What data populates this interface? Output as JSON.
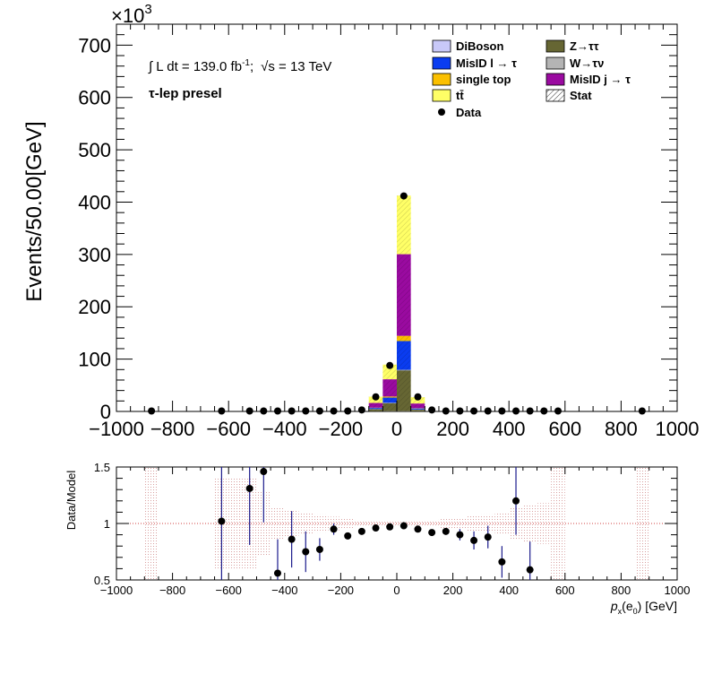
{
  "chart_data": [
    {
      "type": "bar",
      "stacked": true,
      "bin_width": 50,
      "x_range": [
        -1000,
        1000
      ],
      "ylim": [
        0,
        740
      ],
      "ylabel": "Events/50.00[GeV]",
      "y_multiplier": "×10",
      "y_multiplier_exp": "3",
      "x_ticks": [
        -1000,
        -800,
        -600,
        -400,
        -200,
        0,
        200,
        400,
        600,
        800,
        1000
      ],
      "y_ticks": [
        0,
        100,
        200,
        300,
        400,
        500,
        600,
        700
      ],
      "annotation_lumi": "∫ L dt = 139.0 fb",
      "annotation_lumi_sup": "-1",
      "annotation_sep": ";",
      "annotation_sqrt_s": "√s = 13 TeV",
      "annotation_region": "τ-lep presel",
      "legend": [
        {
          "label": "DiBoson",
          "color": "#c8c8f8",
          "kind": "box"
        },
        {
          "label": "Z→ττ",
          "color": "#666633",
          "kind": "box"
        },
        {
          "label": "MisID l → τ",
          "color": "#0a3cf0",
          "kind": "box"
        },
        {
          "label": "W→τν",
          "color": "#b4b4b4",
          "kind": "box"
        },
        {
          "label": "single top",
          "color": "#fbc000",
          "kind": "box"
        },
        {
          "label": "MisID j → τ",
          "color": "#9a0aa0",
          "kind": "box"
        },
        {
          "label": "tt̄",
          "color": "#ffff66",
          "kind": "box"
        },
        {
          "label": "Stat",
          "color": "#000000",
          "kind": "hatch"
        },
        {
          "label": "Data",
          "color": "#000000",
          "kind": "marker"
        }
      ],
      "bins_center": [
        -75,
        -25,
        25,
        75
      ],
      "series": [
        {
          "name": "DiBoson",
          "color": "#c8c8f8",
          "values": [
            0.2,
            0.5,
            0.5,
            0.2
          ]
        },
        {
          "name": "Z→ττ",
          "color": "#666633",
          "values": [
            4,
            15,
            78,
            3
          ]
        },
        {
          "name": "W→τν",
          "color": "#b4b4b4",
          "values": [
            0.5,
            1,
            1,
            0.5
          ]
        },
        {
          "name": "MisID l → τ",
          "color": "#0a3cf0",
          "values": [
            2,
            10,
            55,
            2
          ]
        },
        {
          "name": "single top",
          "color": "#fbc000",
          "values": [
            0.5,
            2,
            10,
            0.5
          ]
        },
        {
          "name": "MisID j → τ",
          "color": "#9a0aa0",
          "values": [
            9,
            33,
            156,
            9
          ]
        },
        {
          "name": "tt̄",
          "color": "#ffff66",
          "values": [
            12,
            28,
            112,
            12
          ]
        }
      ],
      "data_points": {
        "x": [
          -875,
          -625,
          -525,
          -475,
          -425,
          -375,
          -325,
          -275,
          -225,
          -175,
          -125,
          -75,
          -25,
          25,
          75,
          125,
          175,
          225,
          275,
          325,
          375,
          425,
          475,
          525,
          575,
          875
        ],
        "y": [
          0,
          0,
          0,
          0,
          0,
          0,
          0,
          0,
          0,
          0,
          2,
          27,
          87,
          411,
          27,
          2,
          0,
          0,
          0,
          0,
          0,
          0,
          0,
          0,
          0,
          0
        ]
      }
    },
    {
      "type": "scatter",
      "xlabel": "p",
      "xlabel_sub": "x",
      "xlabel_rest": "(e",
      "xlabel_sub2": "0",
      "xlabel_end": ") [GeV]",
      "ylabel": "Data/Model",
      "x_range": [
        -1000,
        1000
      ],
      "ylim": [
        0.5,
        1.5
      ],
      "x_ticks": [
        -1000,
        -800,
        -600,
        -400,
        -200,
        0,
        200,
        400,
        600,
        800,
        1000
      ],
      "y_ticks": [
        0.5,
        1,
        1.5
      ],
      "reference_line": 1,
      "points": [
        {
          "x": -625,
          "y": 1.02,
          "err": 0.55
        },
        {
          "x": -525,
          "y": 1.31,
          "err": 0.5
        },
        {
          "x": -475,
          "y": 1.46,
          "err": 0.45
        },
        {
          "x": -425,
          "y": 0.56,
          "err": 0.3
        },
        {
          "x": -375,
          "y": 0.86,
          "err": 0.25
        },
        {
          "x": -325,
          "y": 0.75,
          "err": 0.18
        },
        {
          "x": -275,
          "y": 0.77,
          "err": 0.1
        },
        {
          "x": -225,
          "y": 0.95,
          "err": 0.05
        },
        {
          "x": -175,
          "y": 0.89,
          "err": 0.03
        },
        {
          "x": -125,
          "y": 0.93,
          "err": 0.02
        },
        {
          "x": -75,
          "y": 0.96,
          "err": 0.01
        },
        {
          "x": -25,
          "y": 0.97,
          "err": 0.01
        },
        {
          "x": 25,
          "y": 0.98,
          "err": 0.01
        },
        {
          "x": 75,
          "y": 0.95,
          "err": 0.01
        },
        {
          "x": 125,
          "y": 0.92,
          "err": 0.02
        },
        {
          "x": 175,
          "y": 0.93,
          "err": 0.03
        },
        {
          "x": 225,
          "y": 0.9,
          "err": 0.05
        },
        {
          "x": 275,
          "y": 0.85,
          "err": 0.08
        },
        {
          "x": 325,
          "y": 0.88,
          "err": 0.1
        },
        {
          "x": 375,
          "y": 0.66,
          "err": 0.14
        },
        {
          "x": 425,
          "y": 1.2,
          "err": 0.3
        },
        {
          "x": 475,
          "y": 0.59,
          "err": 0.25
        }
      ],
      "stat_band": [
        {
          "x0": -900,
          "x1": -850,
          "lo": 0.0,
          "hi": 2.0
        },
        {
          "x0": -650,
          "x1": -600,
          "lo": 0.6,
          "hi": 1.4
        },
        {
          "x0": -600,
          "x1": -550,
          "lo": 0.6,
          "hi": 1.4
        },
        {
          "x0": -550,
          "x1": -500,
          "lo": 0.6,
          "hi": 1.4
        },
        {
          "x0": -500,
          "x1": -450,
          "lo": 0.72,
          "hi": 1.28
        },
        {
          "x0": -450,
          "x1": -400,
          "lo": 0.85,
          "hi": 1.15
        },
        {
          "x0": -400,
          "x1": -350,
          "lo": 0.88,
          "hi": 1.12
        },
        {
          "x0": -350,
          "x1": -300,
          "lo": 0.91,
          "hi": 1.09
        },
        {
          "x0": -300,
          "x1": -250,
          "lo": 0.92,
          "hi": 1.08
        },
        {
          "x0": -250,
          "x1": -200,
          "lo": 0.94,
          "hi": 1.06
        },
        {
          "x0": -200,
          "x1": -150,
          "lo": 0.96,
          "hi": 1.04
        },
        {
          "x0": -150,
          "x1": -100,
          "lo": 0.97,
          "hi": 1.03
        },
        {
          "x0": -100,
          "x1": 100,
          "lo": 0.985,
          "hi": 1.015
        },
        {
          "x0": 100,
          "x1": 150,
          "lo": 0.97,
          "hi": 1.03
        },
        {
          "x0": 150,
          "x1": 200,
          "lo": 0.96,
          "hi": 1.04
        },
        {
          "x0": 200,
          "x1": 250,
          "lo": 0.95,
          "hi": 1.05
        },
        {
          "x0": 250,
          "x1": 300,
          "lo": 0.93,
          "hi": 1.07
        },
        {
          "x0": 300,
          "x1": 350,
          "lo": 0.92,
          "hi": 1.08
        },
        {
          "x0": 350,
          "x1": 400,
          "lo": 0.9,
          "hi": 1.1
        },
        {
          "x0": 400,
          "x1": 450,
          "lo": 0.86,
          "hi": 1.14
        },
        {
          "x0": 450,
          "x1": 500,
          "lo": 0.84,
          "hi": 1.16
        },
        {
          "x0": 500,
          "x1": 550,
          "lo": 0.82,
          "hi": 1.18
        },
        {
          "x0": 550,
          "x1": 600,
          "lo": 0.0,
          "hi": 2.0
        },
        {
          "x0": 850,
          "x1": 900,
          "lo": 0.0,
          "hi": 2.0
        }
      ]
    }
  ]
}
